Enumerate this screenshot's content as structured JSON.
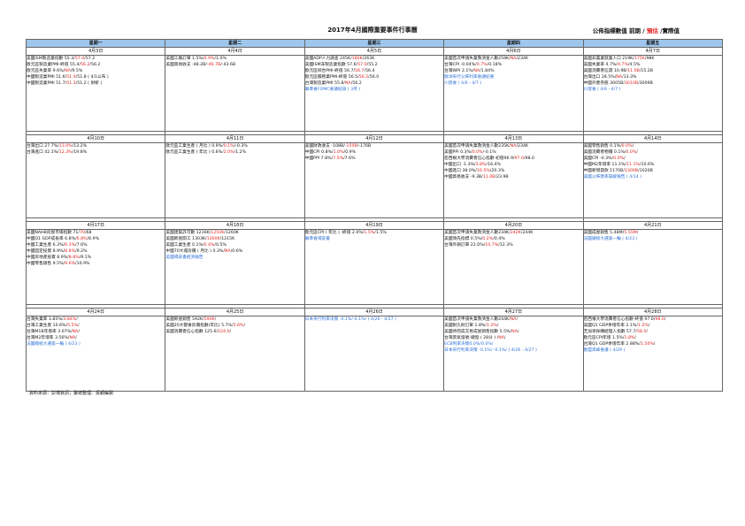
{
  "title": "2017年4月國際重要事件行事曆",
  "legend": {
    "a": "公佈指標數值  前期 / ",
    "b": "預估",
    "c": " /實際值"
  },
  "colors": {
    "header": "#9fc6ec",
    "forecast": "#e01b1b",
    "event": "#2a6fd6"
  },
  "days": [
    "星期一",
    "星期二",
    "星期三",
    "星期四",
    "星期五"
  ],
  "weeks": [
    {
      "dates": [
        "4月3日",
        "4月4日",
        "4月5日",
        "4月6日",
        "4月7日"
      ],
      "cells": [
        [
          {
            "a": "美國ISM製造業指數 55.3/",
            "b": "57.0",
            "c": "/57.2"
          },
          {
            "a": "歐元區製造業PMI-終值 55.4/",
            "b": "56.2",
            "c": "/56.2"
          },
          {
            "a": "歐元區失業率 9.6%/",
            "b": "NA",
            "c": "/9.5%"
          },
          {
            "a": "中國製造業PMI 51.6/",
            "b": "51.4",
            "c": "/51.8 ( 4/1公布 )"
          },
          {
            "a": "中國製造業PMI 51.7/",
            "b": "51.3",
            "c": "/51.2 ( 財新 )"
          }
        ],
        [
          {
            "a": "美國工廠訂單 1.5%/",
            "b": "0.9%",
            "c": "/1.0%"
          },
          {
            "a": "美國貿易收支 -48.2B/",
            "b": "-46.7B",
            "c": "/-43.6B"
          }
        ],
        [
          {
            "a": "美國ADP人力調查 245K/",
            "b": "180K",
            "c": "/263K"
          },
          {
            "a": "美國ISM非製造業指數 57.6/",
            "b": "57.0",
            "c": "/55.2"
          },
          {
            "a": "歐元區綜合PMI-終值 56.7/",
            "b": "56.7",
            "c": "/56.4"
          },
          {
            "a": "歐元區服務業PMI-終值 56.5/",
            "b": "56.5",
            "c": "/56.0"
          },
          {
            "a": "台灣製造業PMI 55.8/",
            "b": "NA",
            "c": "/56.2"
          },
          {
            "blue": "聯準會FOMC會議紀錄 ( 3月 )"
          }
        ],
        [
          {
            "a": "美國首次申請失業救濟金人數259K/",
            "b": "NA",
            "c": "/234K"
          },
          {
            "a": "台灣CPI -0.04%/",
            "b": "0.7%",
            "c": "/0.18%"
          },
          {
            "a": "台灣WPI 2.1%/",
            "b": "NA",
            "c": "/1.84%"
          },
          {
            "blue": "歐洲央行公佈利率會議紀要"
          },
          {
            "blue": "川習會 ( 4/6 - 4/7 )"
          }
        ],
        [
          {
            "a": "美國非農業就業人口 219K/",
            "b": "175K",
            "c": "/98K"
          },
          {
            "a": "美國失業率 4.7%/",
            "b": "4.7%",
            "c": "/4.5%"
          },
          {
            "a": "美國消費者信貸 10.9B/",
            "b": "11.0B",
            "c": "/15.2B"
          },
          {
            "a": "台灣出口 28.5%/",
            "b": "NA",
            "c": "/13.3%"
          },
          {
            "a": "中國外匯存底 3005B/",
            "b": "3010B",
            "c": "/3009B"
          },
          {
            "blue": "川習會 ( 4/6 - 4/7 )"
          }
        ]
      ]
    },
    {
      "dates": [
        "4月10日",
        "4月11日",
        "4月12日",
        "4月13日",
        "4月14日"
      ],
      "cells": [
        [
          {
            "a": "台灣出口 27.7%/",
            "b": "13.0%",
            "c": "/13.2%"
          },
          {
            "a": "台灣進口 42.1%/",
            "b": "12.3%",
            "c": "/19.8%"
          }
        ],
        [
          {
            "a": "歐元區工業生產 ( 月比 ) 0.9%/",
            "b": "0.1%",
            "c": "/-0.3%"
          },
          {
            "a": "歐元區工業生產 ( 年比 ) 0.6%/",
            "b": "2.0%",
            "c": "/1.2%"
          }
        ],
        [
          {
            "a": "美國財政收支 -108B/",
            "b": "-150B",
            "c": "/-176B"
          },
          {
            "a": "中國CPI 0.8%/",
            "b": "1.0%",
            "c": "/0.9%"
          },
          {
            "a": "中國PPI 7.8%/",
            "b": "7.5%",
            "c": "/7.6%"
          }
        ],
        [
          {
            "a": "美國首次申請失業救濟金人數235K/",
            "b": "NA",
            "c": "/234K"
          },
          {
            "a": "美國PPI 0.3%/",
            "b": "0.0%",
            "c": "/-0.1%"
          },
          {
            "a": "密西根大學消費者信心指數-初值96.9/",
            "b": "97.0",
            "c": "/98.0"
          },
          {
            "a": "中國出口 -1.3%/",
            "b": "3.8%",
            "c": "/16.4%"
          },
          {
            "a": "中國進口 38.0%/",
            "b": "16.5%",
            "c": "/20.3%"
          },
          {
            "a": "中國貿易收支 -9.3B/",
            "b": "11.0B",
            "c": "/23.9B"
          }
        ],
        [
          {
            "a": "美國零售銷售 0.1%/",
            "b": "0.0%",
            "c": "/"
          },
          {
            "a": "美國消費者物價 0.1%/",
            "b": "0.0%",
            "c": "/"
          },
          {
            "a": "美國CPI -0.3%/",
            "b": "0.0%",
            "c": "/"
          },
          {
            "a": "中國M2年增率 11.1%/",
            "b": "11.1%",
            "c": "/10.6%"
          },
          {
            "a": "中國新增貸款 1170B/",
            "b": "1300B",
            "c": "/1020B"
          },
          {
            "blue": "美國公佈匯率操縱報告 ( 4/14 )"
          }
        ]
      ]
    },
    {
      "dates": [
        "4月17日",
        "4月18日",
        "4月19日",
        "4月20日",
        "4月21日"
      ],
      "cells": [
        [
          {
            "a": "美國NAHB房屋市場指數 71/",
            "b": "70",
            "c": "/68"
          },
          {
            "a": "中國Q1 GDP成長率 6.8%/",
            "b": "6.8%",
            "c": "/6.9%"
          },
          {
            "a": "中國工業生產 6.3%/",
            "b": "6.3%",
            "c": "/7.6%"
          },
          {
            "a": "中國固定投資 8.9%/",
            "b": "8.8%",
            "c": "/9.2%"
          },
          {
            "a": "中國房地產投資 8.9%/",
            "b": "8.8%",
            "c": "/9.1%"
          },
          {
            "a": "中國零售銷售 9.5%/",
            "b": "9.6%",
            "c": "/10.9%"
          }
        ],
        [
          {
            "a": "美國建築許可數 1216K/",
            "b": "1250K",
            "c": "/1260K"
          },
          {
            "a": "美國新屋開工 1303K/",
            "b": "1260K",
            "c": "/1215K"
          },
          {
            "a": "美國工業生產 0.1%/",
            "b": "0.4%",
            "c": "/0.5%"
          },
          {
            "a": "中國70大城房價 ( 月比 ) 0.3%/",
            "b": "NA",
            "c": "/0.6%"
          },
          {
            "blue": "美國褐皮書經濟報告"
          }
        ],
        [
          {
            "a": "歐元區CPI ( 年比 ) -終值 2.0%/",
            "b": "1.5%",
            "c": "/1.5%"
          },
          {
            "blue": "聯準會褐皮書"
          }
        ],
        [
          {
            "a": "美國首次申請失業救濟金人數234K/",
            "b": "242K",
            "c": "/244K"
          },
          {
            "a": "美國領先指標 0.5%/",
            "b": "0.2%",
            "c": "/0.4%"
          },
          {
            "a": "台灣外銷訂單 22.0%/",
            "b": "10.7%",
            "c": "/12.3%"
          }
        ],
        [
          {
            "a": "美國成屋銷售 5.48M/",
            "b": "5.55M",
            "c": "/"
          },
          {
            "blue": "法國總統大選第一輪 ( 4/23 )"
          }
        ]
      ]
    },
    {
      "dates": [
        "4月24日",
        "4月25日",
        "4月26日",
        "4月27日",
        "4月28日"
      ],
      "cells": [
        [
          {
            "a": "台灣失業率 3.85%/",
            "b": "3.84%",
            "c": "/"
          },
          {
            "a": "台灣工業生產 10.6%/",
            "b": "5.5%",
            "c": "/"
          },
          {
            "a": "台灣M1B年增率 3.07%/",
            "b": "NA",
            "c": "/"
          },
          {
            "a": "台灣M2年增率 3.56%/",
            "b": "NA",
            "c": "/"
          },
          {
            "blue": "法國總統大選第一輪 ( 4/23 )"
          }
        ],
        [
          {
            "a": "美國新屋銷售 592K/",
            "b": "590K",
            "c": "/"
          },
          {
            "a": "美國20大都會房價指數(年比) 5.7%/",
            "b": "5.6%",
            "c": "/"
          },
          {
            "a": "美國消費者信心指數 125.6/",
            "b": "124.0",
            "c": "/"
          }
        ],
        [
          {
            "blue": "日本央行利率決策 -0.1%/-0.1%/ ( 4/26 - 4/27 )"
          }
        ],
        [
          {
            "a": "美國首次申請失業救濟金人數244K/",
            "b": "NA",
            "c": "/"
          },
          {
            "a": "美國耐久財訂單 1.8%/",
            "b": "1.2%",
            "c": "/"
          },
          {
            "a": "美國待完成交易成屋銷售指數 5.5%/",
            "b": "NA",
            "c": "/"
          },
          {
            "a": "台灣景氣燈號-總燈 ( 28分 ) /",
            "b": "NA",
            "c": "/"
          },
          {
            "blue": "ECB利率決策0.0%/0.0%/"
          },
          {
            "blue": "日本央行利率決策 -0.1%/ -0.1%/ ( 4/26 - 4/27 )"
          }
        ],
        [
          {
            "a": "密西根大學消費者信心指數-終值 97.6/",
            "b": "98.0",
            "c": "/"
          },
          {
            "a": "美國Q1 GDP季增年率 2.1%/",
            "b": "1.2%",
            "c": "/"
          },
          {
            "a": "芝加哥採購經理人指數 57.7/",
            "b": "58.0",
            "c": "/"
          },
          {
            "a": "歐元區CPI年增 1.5%/",
            "b": "1.8%",
            "c": "/"
          },
          {
            "a": "台灣Q1 GDP季增年率 2.88%/",
            "b": "2.50%",
            "c": "/"
          },
          {
            "blue": "歐盟高峰會議 ( 4/29 )"
          }
        ]
      ]
    }
  ],
  "source": "資料來源：彭博資訊；彙總整理：投顧編製"
}
